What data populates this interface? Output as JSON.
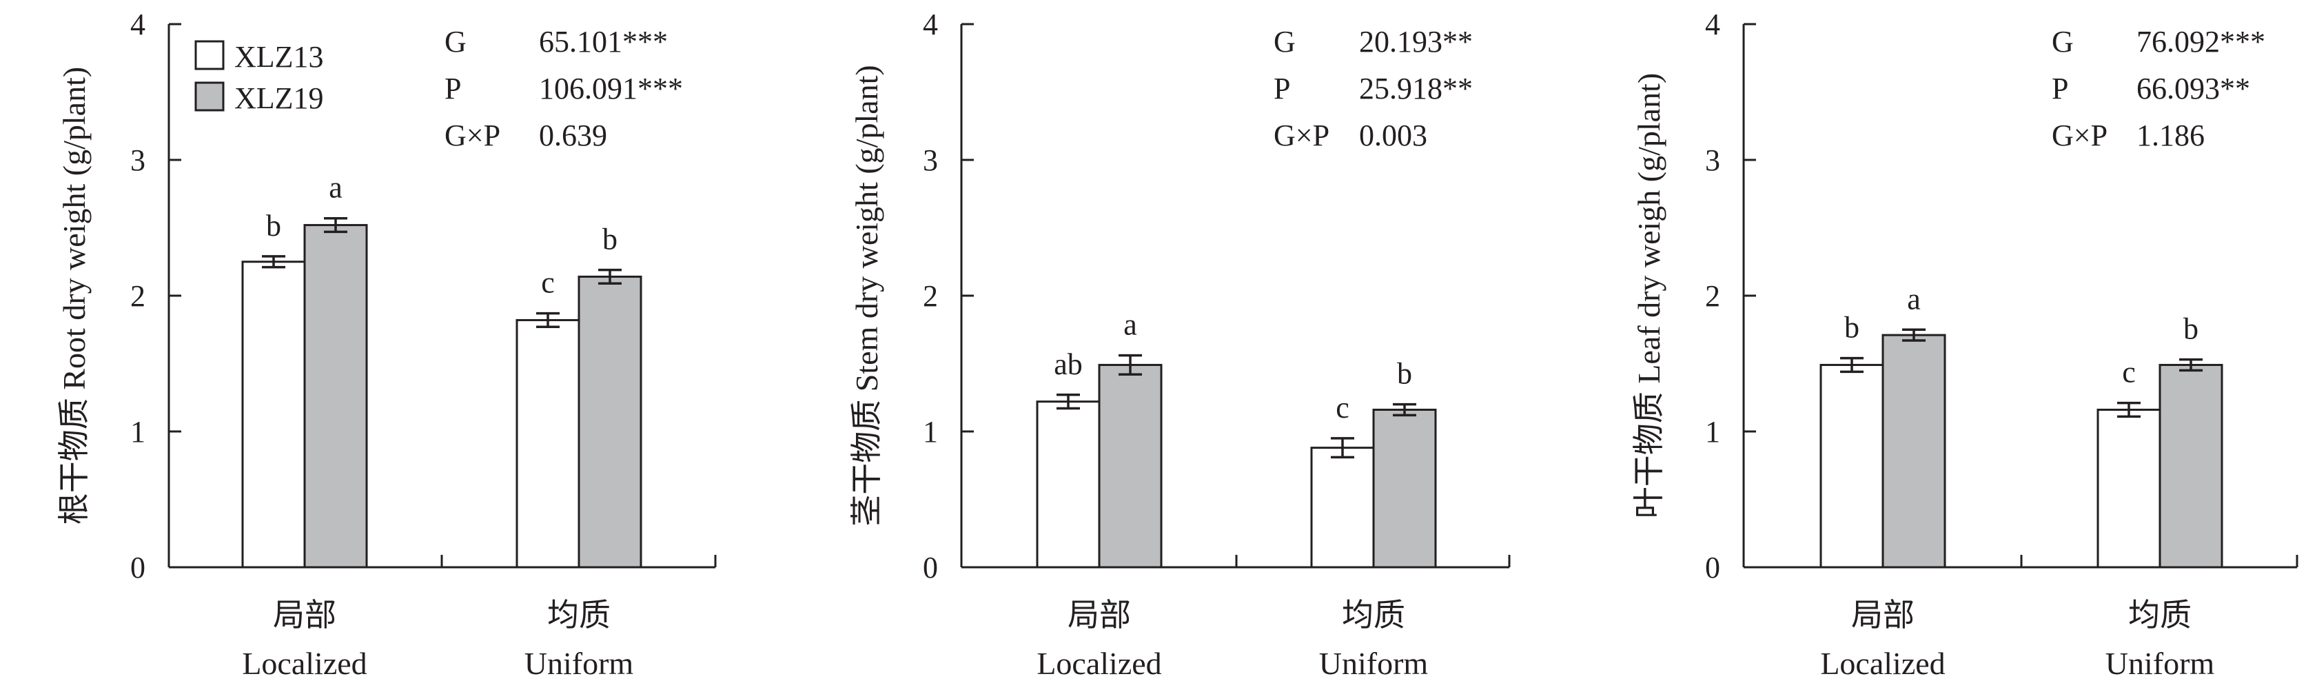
{
  "legend": {
    "items": [
      {
        "label": "XLZ13",
        "color": "#ffffff"
      },
      {
        "label": "XLZ19",
        "color": "#bcbec0"
      }
    ]
  },
  "chart_data": [
    {
      "type": "bar",
      "ylabel": "根干物质 Root dry weight (g/plant)",
      "ylim": [
        0,
        4
      ],
      "yticks": [
        "0",
        "1",
        "2",
        "3",
        "4"
      ],
      "categories": [
        {
          "cn": "局部",
          "en": "Localized"
        },
        {
          "cn": "均质",
          "en": "Uniform"
        }
      ],
      "series": [
        {
          "name": "XLZ13",
          "values": [
            2.25,
            1.82
          ],
          "errors": [
            0.04,
            0.05
          ],
          "letters": [
            "b",
            "c"
          ]
        },
        {
          "name": "XLZ19",
          "values": [
            2.52,
            2.14
          ],
          "errors": [
            0.05,
            0.05
          ],
          "letters": [
            "a",
            "b"
          ]
        }
      ],
      "stats": [
        {
          "term": "G",
          "value": "65.101***"
        },
        {
          "term": "P",
          "value": "106.091***"
        },
        {
          "term": "G×P",
          "value": "0.639"
        }
      ]
    },
    {
      "type": "bar",
      "ylabel": "茎干物质 Stem dry weight (g/plant)",
      "ylim": [
        0,
        4
      ],
      "yticks": [
        "0",
        "1",
        "2",
        "3",
        "4"
      ],
      "categories": [
        {
          "cn": "局部",
          "en": "Localized"
        },
        {
          "cn": "均质",
          "en": "Uniform"
        }
      ],
      "series": [
        {
          "name": "XLZ13",
          "values": [
            1.22,
            0.88
          ],
          "errors": [
            0.05,
            0.07
          ],
          "letters": [
            "ab",
            "c"
          ]
        },
        {
          "name": "XLZ19",
          "values": [
            1.49,
            1.16
          ],
          "errors": [
            0.07,
            0.04
          ],
          "letters": [
            "a",
            "b"
          ]
        }
      ],
      "stats": [
        {
          "term": "G",
          "value": "20.193**"
        },
        {
          "term": "P",
          "value": "25.918**"
        },
        {
          "term": "G×P",
          "value": "0.003"
        }
      ]
    },
    {
      "type": "bar",
      "ylabel": "叶干物质 Leaf dry weigh (g/plant)",
      "ylim": [
        0,
        4
      ],
      "yticks": [
        "0",
        "1",
        "2",
        "3",
        "4"
      ],
      "categories": [
        {
          "cn": "局部",
          "en": "Localized"
        },
        {
          "cn": "均质",
          "en": "Uniform"
        }
      ],
      "series": [
        {
          "name": "XLZ13",
          "values": [
            1.49,
            1.16
          ],
          "errors": [
            0.05,
            0.05
          ],
          "letters": [
            "b",
            "c"
          ]
        },
        {
          "name": "XLZ19",
          "values": [
            1.71,
            1.49
          ],
          "errors": [
            0.04,
            0.04
          ],
          "letters": [
            "a",
            "b"
          ]
        }
      ],
      "stats": [
        {
          "term": "G",
          "value": "76.092***"
        },
        {
          "term": "P",
          "value": "66.093**"
        },
        {
          "term": "G×P",
          "value": "1.186"
        }
      ]
    }
  ]
}
